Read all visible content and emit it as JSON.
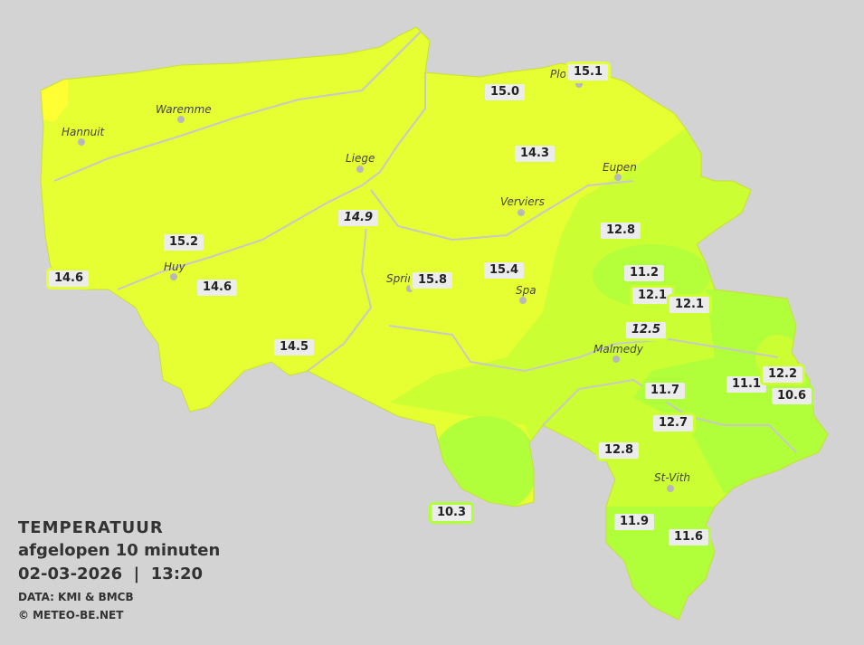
{
  "title": "TEMPERATUUR",
  "subtitle": "afgelopen 10 minuten",
  "datetime": "02-03-2026  |  13:20",
  "source": "DATA: KMI & BMCB",
  "copyright": "© METEO-BE.NET",
  "colors": {
    "background": "#d3d3d3",
    "zone_15": "#e6ff33",
    "zone_13": "#ccff33",
    "zone_11": "#b0ff3a",
    "zone_16": "#ffff33",
    "label_bg": "#ececec"
  },
  "cities": [
    "Hannuit",
    "Waremme",
    "Liege",
    "Verviers",
    "Eupen",
    "Huy",
    "Sprin",
    "Spa",
    "Malmedy",
    "St-Vith",
    "Plo"
  ],
  "stations": [
    {
      "value": "15.1"
    },
    {
      "value": "15.0"
    },
    {
      "value": "14.3"
    },
    {
      "value": "14.9",
      "estimated": true
    },
    {
      "value": "15.2"
    },
    {
      "value": "14.6"
    },
    {
      "value": "14.6"
    },
    {
      "value": "15.8"
    },
    {
      "value": "15.4"
    },
    {
      "value": "12.8"
    },
    {
      "value": "11.2"
    },
    {
      "value": "12.1"
    },
    {
      "value": "12.1"
    },
    {
      "value": "12.5",
      "estimated": true
    },
    {
      "value": "14.5"
    },
    {
      "value": "11.7"
    },
    {
      "value": "11.1"
    },
    {
      "value": "12.2"
    },
    {
      "value": "10.6"
    },
    {
      "value": "12.7"
    },
    {
      "value": "12.8"
    },
    {
      "value": "10.3"
    },
    {
      "value": "11.9"
    },
    {
      "value": "11.6"
    }
  ]
}
